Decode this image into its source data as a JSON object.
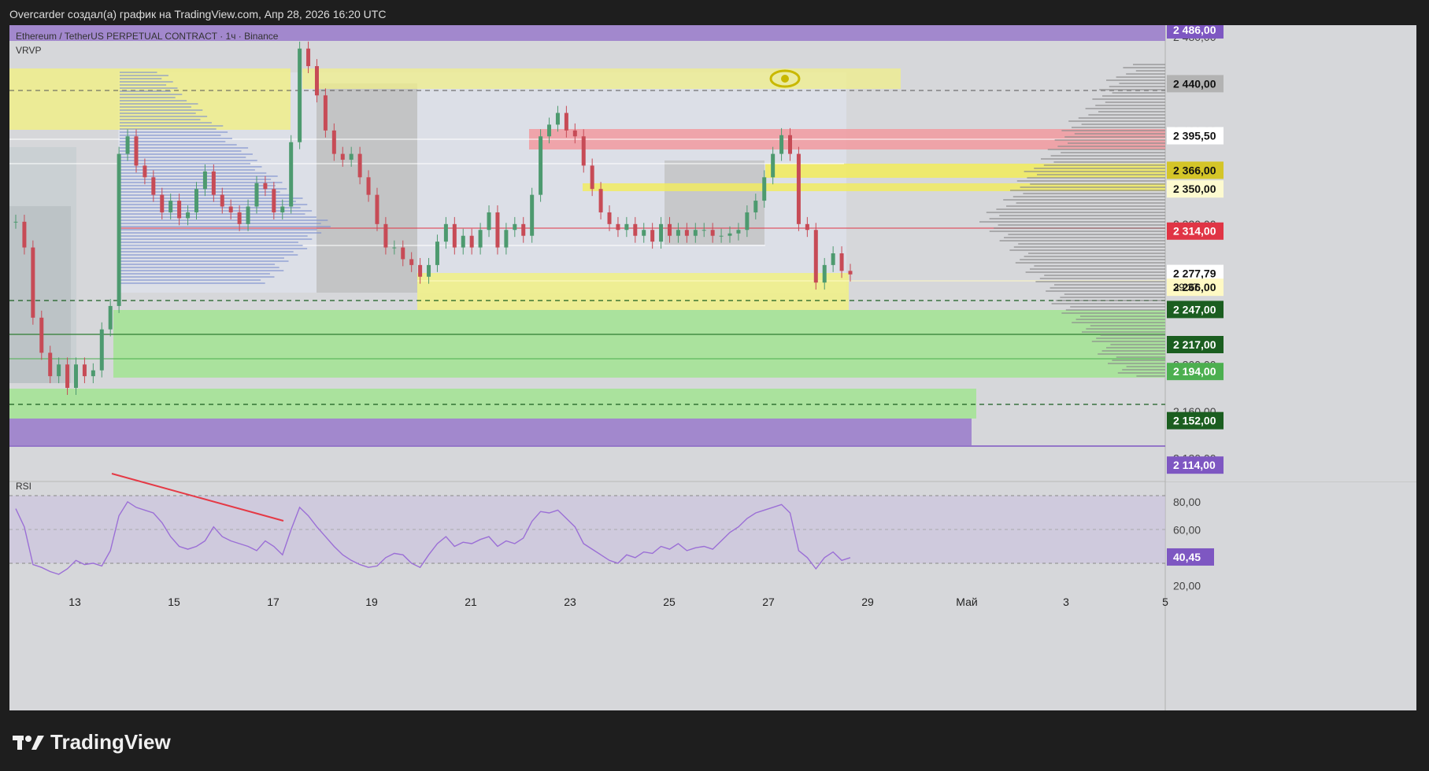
{
  "header_text": "Overcarder создал(а) график на TradingView.com, Апр 28, 2026 16:20 UTC",
  "symbol_title": "Ethereum / TetherUS PERPETUAL CONTRACT · 1ч · Binance",
  "indicator_vrvp": "VRVP",
  "indicator_rsi": "RSI",
  "footer_brand": "TradingView",
  "countdown": "39:37",
  "colors": {
    "background": "#d6d7da",
    "outer": "#1e1e1e",
    "up_candle": "#4d9a6f",
    "down_candle": "#c74b56",
    "rsi_line": "#9b6fd6",
    "purple_zone": "#9c7fcb",
    "green_zone": "#a8e39a",
    "yellow_zone": "#f0ef8a",
    "red_zone": "#f29a9f"
  },
  "chart_data": {
    "type": "candlestick",
    "title": "Ethereum / TetherUS PERPETUAL CONTRACT · 1ч · Binance",
    "x_tick_labels": [
      "13",
      "15",
      "17",
      "19",
      "21",
      "23",
      "25",
      "27",
      "29",
      "Май",
      "3",
      "5"
    ],
    "y_tick_labels": [
      "2 480,00",
      "2 400,00",
      "2 320,00",
      "2 200,00",
      "2 160,00",
      "2 120,00"
    ],
    "ylim": [
      2100,
      2490
    ],
    "price_labels": [
      {
        "value": 2486.0,
        "text": "2 486,00",
        "color": "#7e57c2"
      },
      {
        "value": 2440.0,
        "text": "2 440,00",
        "color": "#b3b3b3"
      },
      {
        "value": 2395.5,
        "text": "2 395,50",
        "color": "#ffffff"
      },
      {
        "value": 2366.0,
        "text": "2 366,00",
        "color": "#d4c528"
      },
      {
        "value": 2350.0,
        "text": "2 350,00",
        "color": "#fdfad0"
      },
      {
        "value": 2314.0,
        "text": "2 314,00",
        "color": "#e03545"
      },
      {
        "value": 2277.79,
        "text": "2 277,79",
        "color": "#ffffff"
      },
      {
        "value": 2266.0,
        "text": "2 266,00",
        "color": "#fff9c4"
      },
      {
        "value": 2247.0,
        "text": "2 247,00",
        "color": "#1b5e20"
      },
      {
        "value": 2217.0,
        "text": "2 217,00",
        "color": "#1b5e20"
      },
      {
        "value": 2194.0,
        "text": "2 194,00",
        "color": "#4caf50"
      },
      {
        "value": 2152.0,
        "text": "2 152,00",
        "color": "#1b5e20"
      },
      {
        "value": 2114.0,
        "text": "2 114,00",
        "color": "#7e57c2"
      }
    ],
    "close_series": [
      2322,
      2300,
      2240,
      2210,
      2190,
      2200,
      2180,
      2200,
      2190,
      2195,
      2230,
      2250,
      2380,
      2395,
      2370,
      2360,
      2345,
      2330,
      2340,
      2325,
      2330,
      2350,
      2365,
      2345,
      2335,
      2330,
      2320,
      2335,
      2355,
      2350,
      2330,
      2335,
      2390,
      2470,
      2455,
      2430,
      2400,
      2380,
      2375,
      2380,
      2360,
      2345,
      2320,
      2300,
      2300,
      2290,
      2285,
      2275,
      2285,
      2305,
      2320,
      2300,
      2310,
      2300,
      2315,
      2330,
      2300,
      2315,
      2320,
      2310,
      2345,
      2395,
      2405,
      2415,
      2400,
      2395,
      2370,
      2350,
      2330,
      2320,
      2315,
      2320,
      2310,
      2315,
      2305,
      2320,
      2310,
      2315,
      2310,
      2315,
      2315,
      2310,
      2310,
      2312,
      2315,
      2330,
      2340,
      2360,
      2380,
      2396,
      2380,
      2320,
      2315,
      2270,
      2285,
      2295,
      2280,
      2277
    ],
    "rsi": {
      "levels": [
        80,
        60,
        20
      ],
      "tick_labels": [
        "80,00",
        "60,00",
        "20,00"
      ],
      "current": 40.45,
      "current_text": "40,45",
      "ylim": [
        10,
        90
      ],
      "values": [
        75,
        62,
        35,
        33,
        30,
        28,
        32,
        38,
        35,
        36,
        34,
        45,
        70,
        80,
        76,
        74,
        72,
        65,
        55,
        48,
        46,
        48,
        52,
        62,
        55,
        52,
        50,
        48,
        45,
        52,
        48,
        42,
        60,
        76,
        70,
        62,
        55,
        48,
        42,
        38,
        35,
        33,
        34,
        40,
        43,
        42,
        36,
        33,
        42,
        50,
        55,
        48,
        51,
        50,
        53,
        55,
        48,
        52,
        50,
        54,
        66,
        73,
        72,
        74,
        68,
        62,
        50,
        46,
        42,
        38,
        36,
        42,
        40,
        44,
        43,
        48,
        46,
        50,
        45,
        47,
        48,
        46,
        52,
        58,
        62,
        68,
        72,
        74,
        76,
        78,
        72,
        45,
        40,
        32,
        40,
        44,
        38,
        40
      ]
    }
  }
}
